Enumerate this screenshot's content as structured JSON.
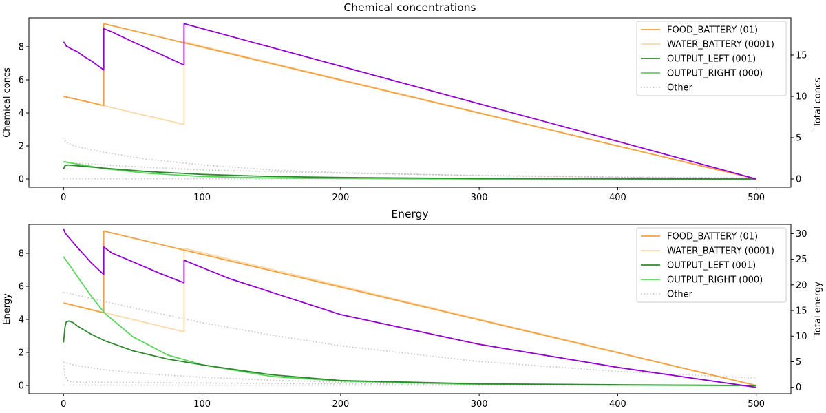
{
  "colors": {
    "food": "#f5a040",
    "water": "#fdd9a8",
    "left": "#2f8a2f",
    "right": "#5ad65a",
    "other": "#c0c0c0",
    "total": "#9400d3"
  },
  "chart_data": [
    {
      "type": "line",
      "title": "Chemical concentrations",
      "ylabel": "Chemical concs",
      "y2label": "Total concs",
      "xlim": [
        -25,
        525
      ],
      "ylim": [
        -0.5,
        9.75
      ],
      "y2lim": [
        -1.0,
        19.5
      ],
      "xticks": [
        0,
        100,
        200,
        300,
        400,
        500
      ],
      "yticks": [
        0,
        2,
        4,
        6,
        8
      ],
      "y2ticks": [
        0,
        5,
        10,
        15
      ],
      "legend_position": "top-right",
      "legend": [
        {
          "label": "FOOD_BATTERY (01)",
          "color_key": "food",
          "dash": false
        },
        {
          "label": "WATER_BATTERY (0001)",
          "color_key": "water",
          "dash": false
        },
        {
          "label": "OUTPUT_LEFT (001)",
          "color_key": "left",
          "dash": false
        },
        {
          "label": "OUTPUT_RIGHT (000)",
          "color_key": "right",
          "dash": false
        },
        {
          "label": "Other",
          "color_key": "other",
          "dash": true
        }
      ],
      "series": [
        {
          "color_key": "other",
          "axis": "left",
          "dash": true,
          "x": [
            0,
            2,
            10,
            30,
            60,
            100,
            150,
            200,
            300,
            400,
            500
          ],
          "y": [
            2.5,
            2.2,
            1.95,
            1.6,
            1.2,
            0.85,
            0.55,
            0.38,
            0.2,
            0.1,
            0.05
          ]
        },
        {
          "color_key": "other",
          "axis": "left",
          "dash": true,
          "x": [
            0,
            50,
            100,
            200,
            300,
            400,
            500
          ],
          "y": [
            1.0,
            0.75,
            0.55,
            0.35,
            0.22,
            0.12,
            0.06
          ]
        },
        {
          "color_key": "other",
          "axis": "left",
          "dash": true,
          "x": [
            0,
            500
          ],
          "y": [
            0.02,
            0.0
          ]
        },
        {
          "color_key": "water",
          "axis": "left",
          "dash": false,
          "x": [
            0,
            87,
            87.01,
            500
          ],
          "y": [
            5.0,
            3.3,
            8.3,
            0.0
          ]
        },
        {
          "color_key": "food",
          "axis": "left",
          "dash": false,
          "x": [
            0,
            29,
            29.01,
            500
          ],
          "y": [
            5.0,
            4.45,
            9.4,
            0.0
          ]
        },
        {
          "color_key": "right",
          "axis": "left",
          "dash": false,
          "x": [
            0,
            10,
            30,
            60,
            100,
            150,
            200,
            300,
            400,
            500
          ],
          "y": [
            1.05,
            0.9,
            0.62,
            0.35,
            0.15,
            0.06,
            0.03,
            0.0,
            0.0,
            0.0
          ]
        },
        {
          "color_key": "left",
          "axis": "left",
          "dash": false,
          "x": [
            0,
            1,
            3,
            10,
            30,
            60,
            100,
            150,
            200,
            300,
            400,
            500
          ],
          "y": [
            0.6,
            0.8,
            0.85,
            0.8,
            0.65,
            0.45,
            0.28,
            0.15,
            0.09,
            0.03,
            0.01,
            0.0
          ]
        },
        {
          "color_key": "total",
          "axis": "right",
          "dash": false,
          "x": [
            0,
            1,
            2,
            5,
            10,
            15,
            20,
            29,
            29.01,
            35,
            50,
            70,
            87,
            87.01,
            500
          ],
          "y": [
            16.6,
            16.4,
            16.1,
            15.8,
            15.4,
            14.8,
            14.3,
            13.2,
            18.2,
            17.8,
            16.6,
            15.1,
            13.8,
            18.8,
            0.0
          ]
        }
      ]
    },
    {
      "type": "line",
      "title": "Energy",
      "ylabel": "Energy",
      "y2label": "Total energy",
      "xlim": [
        -25,
        525
      ],
      "ylim": [
        -0.5,
        9.75
      ],
      "y2lim": [
        -1.25,
        31.8
      ],
      "xticks": [
        0,
        100,
        200,
        300,
        400,
        500
      ],
      "yticks": [
        0,
        2,
        4,
        6,
        8
      ],
      "y2ticks": [
        0,
        5,
        10,
        15,
        20,
        25,
        30
      ],
      "legend_position": "top-right",
      "legend": [
        {
          "label": "FOOD_BATTERY (01)",
          "color_key": "food",
          "dash": false
        },
        {
          "label": "WATER_BATTERY (0001)",
          "color_key": "water",
          "dash": false
        },
        {
          "label": "OUTPUT_LEFT (001)",
          "color_key": "left",
          "dash": false
        },
        {
          "label": "OUTPUT_RIGHT (000)",
          "color_key": "right",
          "dash": false
        },
        {
          "label": "Other",
          "color_key": "other",
          "dash": true
        }
      ],
      "series": [
        {
          "color_key": "other",
          "axis": "left",
          "dash": true,
          "x": [
            0,
            50,
            100,
            150,
            200,
            300,
            400,
            500
          ],
          "y": [
            5.65,
            4.7,
            3.8,
            3.05,
            2.4,
            1.45,
            0.85,
            0.45
          ]
        },
        {
          "color_key": "other",
          "axis": "left",
          "dash": true,
          "x": [
            0,
            10,
            30,
            60,
            100,
            150,
            200,
            300,
            400,
            500
          ],
          "y": [
            1.4,
            1.2,
            0.95,
            0.7,
            0.5,
            0.32,
            0.2,
            0.08,
            0.03,
            0.01
          ]
        },
        {
          "color_key": "other",
          "axis": "left",
          "dash": true,
          "x": [
            0,
            1,
            3,
            6,
            10,
            50,
            100,
            200,
            300,
            400,
            500
          ],
          "y": [
            1.4,
            0.6,
            0.3,
            0.22,
            0.2,
            0.18,
            0.15,
            0.1,
            0.06,
            0.03,
            0.0
          ]
        },
        {
          "color_key": "other",
          "axis": "left",
          "dash": true,
          "x": [
            0,
            500
          ],
          "y": [
            0.02,
            0.0
          ]
        },
        {
          "color_key": "water",
          "axis": "left",
          "dash": false,
          "x": [
            0,
            87,
            87.01,
            500
          ],
          "y": [
            5.0,
            3.25,
            8.3,
            0.0
          ]
        },
        {
          "color_key": "food",
          "axis": "left",
          "dash": false,
          "x": [
            0,
            29,
            29.01,
            500
          ],
          "y": [
            5.0,
            4.4,
            9.35,
            0.0
          ]
        },
        {
          "color_key": "right",
          "axis": "left",
          "dash": false,
          "x": [
            0,
            10,
            20,
            30,
            50,
            75,
            100,
            150,
            200,
            300,
            400,
            500
          ],
          "y": [
            7.8,
            6.6,
            5.4,
            4.35,
            2.95,
            1.85,
            1.25,
            0.55,
            0.27,
            0.06,
            0.02,
            0.0
          ]
        },
        {
          "color_key": "left",
          "axis": "left",
          "dash": false,
          "x": [
            0,
            1,
            2,
            4,
            7,
            10,
            20,
            30,
            50,
            75,
            100,
            150,
            200,
            300,
            400,
            500
          ],
          "y": [
            2.6,
            3.5,
            3.85,
            3.9,
            3.8,
            3.6,
            3.1,
            2.7,
            2.1,
            1.6,
            1.25,
            0.65,
            0.3,
            0.1,
            0.04,
            0.0
          ]
        },
        {
          "color_key": "total",
          "axis": "right",
          "dash": false,
          "x": [
            0,
            1,
            3,
            10,
            20,
            29,
            29.01,
            35,
            50,
            70,
            87,
            87.01,
            120,
            200,
            300,
            400,
            500
          ],
          "y": [
            31.0,
            30.2,
            29.5,
            27.3,
            24.3,
            22.0,
            27.4,
            26.2,
            24.5,
            22.2,
            20.4,
            24.8,
            21.2,
            14.2,
            8.4,
            3.9,
            0.0
          ]
        }
      ]
    }
  ]
}
